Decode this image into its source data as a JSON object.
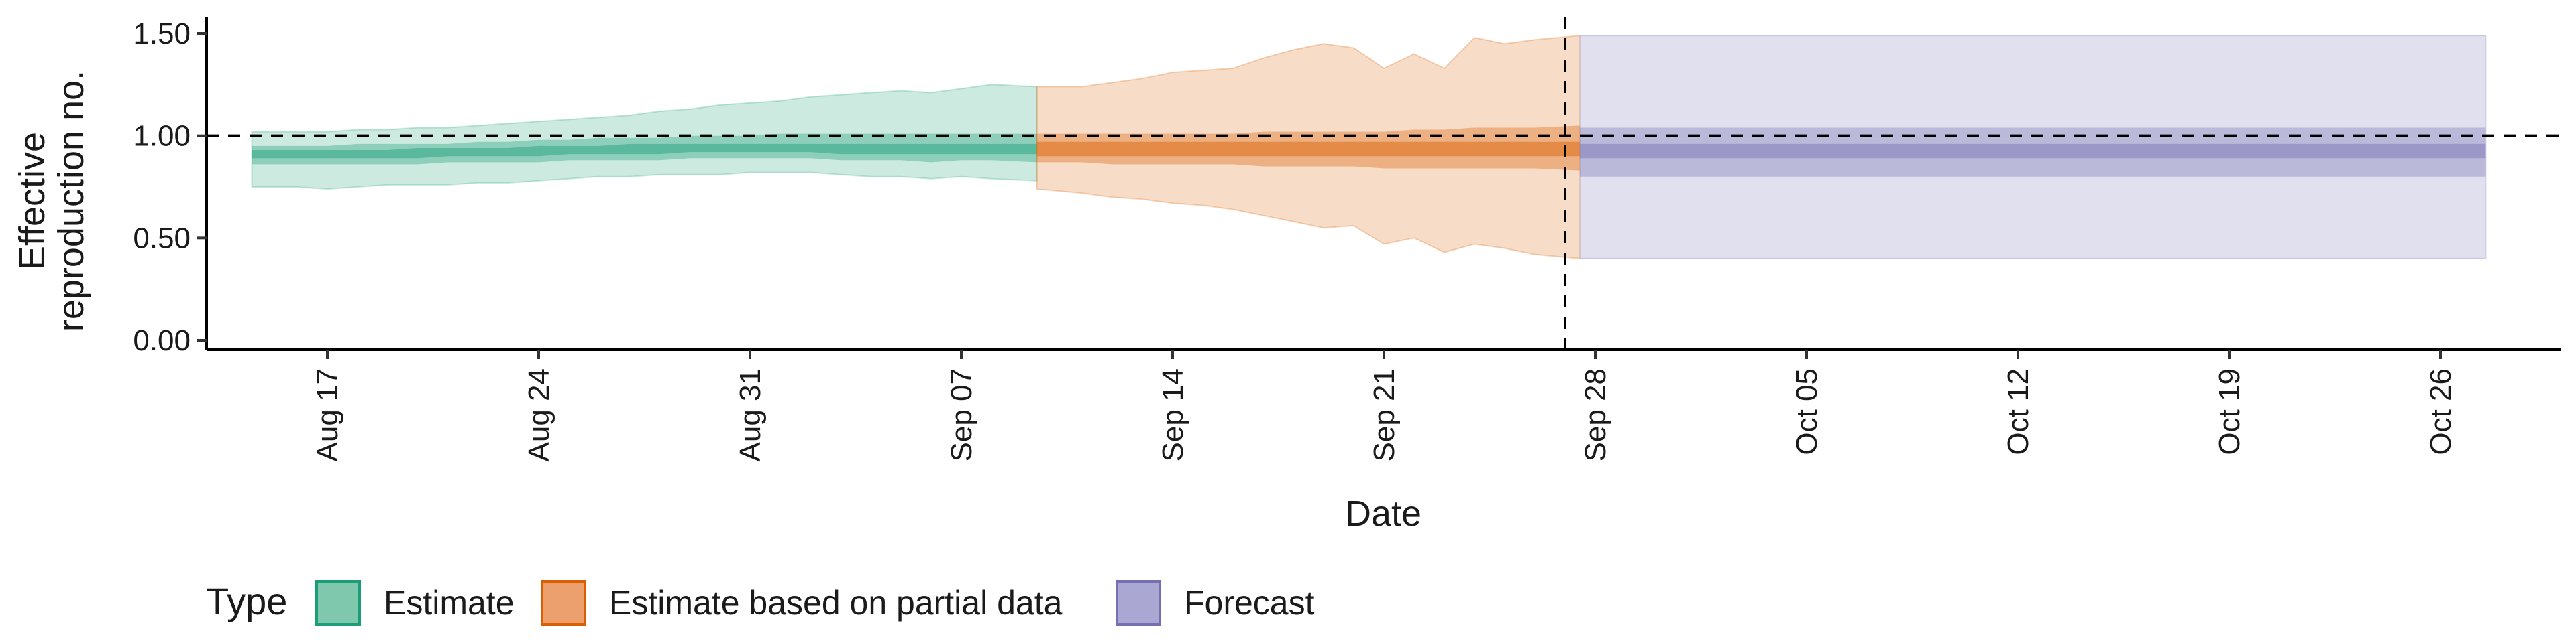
{
  "chart_data": {
    "type": "area",
    "xlabel": "Date",
    "ylabel_lines": [
      "Effective",
      "reproduction no."
    ],
    "ylim": [
      0,
      1.5
    ],
    "yticks": [
      0,
      0.5,
      1.0,
      1.5
    ],
    "ytick_labels": [
      "0.00",
      "0.50",
      "1.00",
      "1.50"
    ],
    "xlim": [
      "2020-08-13",
      "2020-10-30"
    ],
    "xticks": [
      "2020-08-17",
      "2020-08-24",
      "2020-08-31",
      "2020-09-07",
      "2020-09-14",
      "2020-09-21",
      "2020-09-28",
      "2020-10-05",
      "2020-10-12",
      "2020-10-19",
      "2020-10-26"
    ],
    "xtick_labels": [
      "Aug 17",
      "Aug 24",
      "Aug 31",
      "Sep 07",
      "Sep 14",
      "Sep 21",
      "Sep 28",
      "Oct 05",
      "Oct 12",
      "Oct 19",
      "Oct 26"
    ],
    "reference_hline": 1.0,
    "reference_vline": "2020-09-27",
    "legend": {
      "title": "Type",
      "position": "bottom-left",
      "items": [
        {
          "label": "Estimate",
          "fill": "#7fc8ad",
          "stroke": "#1b9e77"
        },
        {
          "label": "Estimate based on partial data",
          "fill": "#eba06e",
          "stroke": "#d95f02"
        },
        {
          "label": "Forecast",
          "fill": "#aaa8d3",
          "stroke": "#7570b3"
        }
      ]
    },
    "series": [
      {
        "name": "Estimate",
        "color": "#1b9e77",
        "x": [
          "2020-08-15",
          "2020-08-16",
          "2020-08-17",
          "2020-08-18",
          "2020-08-19",
          "2020-08-20",
          "2020-08-21",
          "2020-08-22",
          "2020-08-23",
          "2020-08-24",
          "2020-08-25",
          "2020-08-26",
          "2020-08-27",
          "2020-08-28",
          "2020-08-29",
          "2020-08-30",
          "2020-08-31",
          "2020-09-01",
          "2020-09-02",
          "2020-09-03",
          "2020-09-04",
          "2020-09-05",
          "2020-09-06",
          "2020-09-07",
          "2020-09-08",
          "2020-09-09"
        ],
        "outer_lower": [
          0.75,
          0.75,
          0.74,
          0.75,
          0.76,
          0.76,
          0.76,
          0.77,
          0.77,
          0.78,
          0.79,
          0.8,
          0.8,
          0.81,
          0.81,
          0.81,
          0.82,
          0.82,
          0.82,
          0.81,
          0.8,
          0.8,
          0.79,
          0.8,
          0.79,
          0.78
        ],
        "outer_upper": [
          1.02,
          1.02,
          1.02,
          1.03,
          1.03,
          1.04,
          1.04,
          1.05,
          1.06,
          1.07,
          1.08,
          1.09,
          1.1,
          1.12,
          1.13,
          1.15,
          1.16,
          1.17,
          1.19,
          1.2,
          1.21,
          1.22,
          1.21,
          1.23,
          1.25,
          1.24
        ],
        "inner_lower": [
          0.86,
          0.86,
          0.86,
          0.86,
          0.86,
          0.86,
          0.87,
          0.87,
          0.87,
          0.87,
          0.88,
          0.88,
          0.88,
          0.88,
          0.89,
          0.89,
          0.89,
          0.89,
          0.89,
          0.88,
          0.88,
          0.88,
          0.87,
          0.88,
          0.88,
          0.87
        ],
        "inner_upper": [
          0.95,
          0.95,
          0.95,
          0.96,
          0.96,
          0.96,
          0.96,
          0.97,
          0.97,
          0.98,
          0.98,
          0.99,
          0.99,
          0.99,
          1.0,
          1.0,
          1.0,
          1.01,
          1.01,
          1.01,
          1.01,
          1.01,
          1.01,
          1.01,
          1.01,
          1.01
        ],
        "core_lower": [
          0.89,
          0.89,
          0.89,
          0.89,
          0.89,
          0.89,
          0.9,
          0.9,
          0.9,
          0.9,
          0.91,
          0.91,
          0.91,
          0.91,
          0.92,
          0.92,
          0.92,
          0.92,
          0.92,
          0.91,
          0.91,
          0.91,
          0.91,
          0.91,
          0.91,
          0.91
        ],
        "core_upper": [
          0.93,
          0.93,
          0.93,
          0.93,
          0.93,
          0.94,
          0.94,
          0.94,
          0.94,
          0.95,
          0.95,
          0.95,
          0.96,
          0.96,
          0.96,
          0.96,
          0.96,
          0.96,
          0.96,
          0.96,
          0.96,
          0.96,
          0.96,
          0.96,
          0.96,
          0.96
        ]
      },
      {
        "name": "Estimate based on partial data",
        "color": "#d95f02",
        "x": [
          "2020-09-10",
          "2020-09-11",
          "2020-09-12",
          "2020-09-13",
          "2020-09-14",
          "2020-09-15",
          "2020-09-16",
          "2020-09-17",
          "2020-09-18",
          "2020-09-19",
          "2020-09-20",
          "2020-09-21",
          "2020-09-22",
          "2020-09-23",
          "2020-09-24",
          "2020-09-25",
          "2020-09-26",
          "2020-09-27"
        ],
        "outer_lower": [
          0.74,
          0.72,
          0.7,
          0.69,
          0.67,
          0.66,
          0.64,
          0.61,
          0.58,
          0.55,
          0.56,
          0.47,
          0.5,
          0.43,
          0.47,
          0.45,
          0.42,
          0.4
        ],
        "outer_upper": [
          1.24,
          1.24,
          1.26,
          1.28,
          1.31,
          1.32,
          1.33,
          1.38,
          1.42,
          1.45,
          1.43,
          1.33,
          1.4,
          1.33,
          1.48,
          1.45,
          1.47,
          1.49
        ],
        "inner_lower": [
          0.87,
          0.87,
          0.86,
          0.86,
          0.86,
          0.86,
          0.86,
          0.85,
          0.85,
          0.85,
          0.85,
          0.84,
          0.84,
          0.84,
          0.84,
          0.84,
          0.84,
          0.83
        ],
        "inner_upper": [
          1.01,
          1.01,
          1.01,
          1.01,
          1.01,
          1.01,
          1.01,
          1.02,
          1.02,
          1.02,
          1.02,
          1.02,
          1.03,
          1.03,
          1.04,
          1.04,
          1.04,
          1.05
        ],
        "core_lower": [
          0.9,
          0.9,
          0.9,
          0.9,
          0.9,
          0.9,
          0.9,
          0.9,
          0.9,
          0.9,
          0.9,
          0.9,
          0.9,
          0.9,
          0.9,
          0.9,
          0.9,
          0.9
        ],
        "core_upper": [
          0.97,
          0.97,
          0.97,
          0.97,
          0.97,
          0.97,
          0.97,
          0.97,
          0.97,
          0.97,
          0.97,
          0.97,
          0.97,
          0.97,
          0.97,
          0.97,
          0.97,
          0.97
        ]
      },
      {
        "name": "Forecast",
        "color": "#7570b3",
        "x": [
          "2020-09-28",
          "2020-10-27"
        ],
        "outer_lower": [
          0.4,
          0.4
        ],
        "outer_upper": [
          1.49,
          1.49
        ],
        "inner_lower": [
          0.8,
          0.8
        ],
        "inner_upper": [
          1.04,
          1.04
        ],
        "core_lower": [
          0.89,
          0.89
        ],
        "core_upper": [
          0.96,
          0.96
        ]
      }
    ]
  }
}
